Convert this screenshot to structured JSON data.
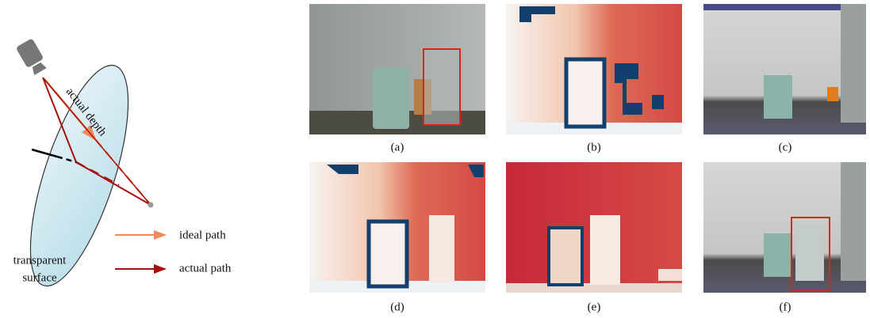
{
  "diagram": {
    "actual_depth": "actual depth",
    "ideal_path": "ideal path",
    "actual_path": "actual path",
    "surface_label": [
      "transparent",
      "surface"
    ]
  },
  "panels": [
    {
      "caption": "(a)"
    },
    {
      "caption": "(b)"
    },
    {
      "caption": "(c)"
    },
    {
      "caption": "(d)"
    },
    {
      "caption": "(e)"
    },
    {
      "caption": "(f)"
    }
  ]
}
